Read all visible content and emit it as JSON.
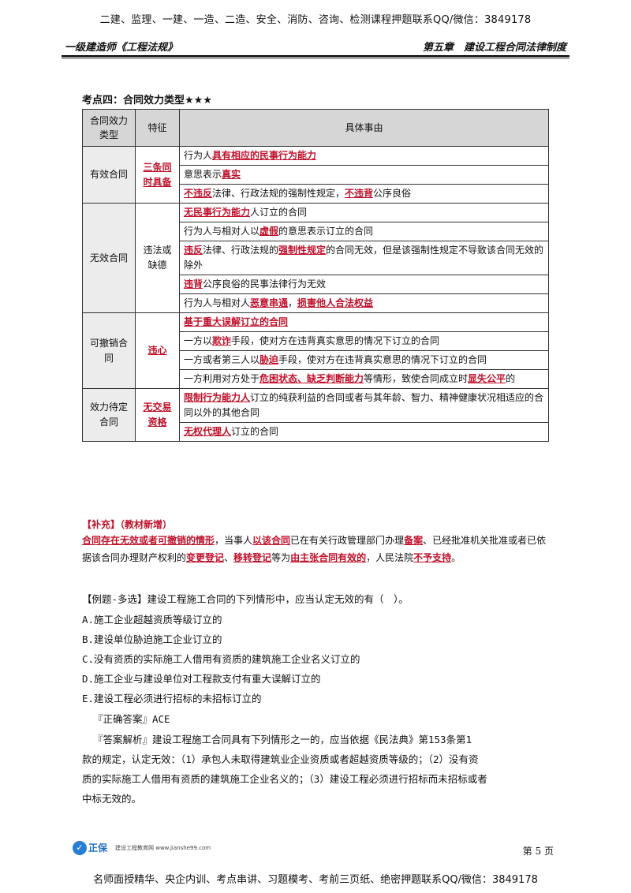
{
  "header": {
    "banner": "二建、监理、一建、一造、二造、安全、消防、咨询、检测课程押题联系QQ/微信：3849178",
    "left": "一级建造师《工程法规》",
    "right": "第五章　建设工程合同法律制度"
  },
  "section_title": "考点四：合同效力类型★★★",
  "table": {
    "headers": [
      "合同效力类型",
      "特征",
      "具体事由"
    ],
    "effective": {
      "category": "有效合同",
      "feature": "三条同时具备",
      "items": [
        {
          "p1": "行为人",
          "r1": "具有相应的民事行为能力"
        },
        {
          "p1": "意思表示",
          "r1": "真实"
        },
        {
          "r1": "不违反",
          "p1": "法律、行政法规的强制性规定，",
          "r2": "不违背",
          "p2": "公序良俗"
        }
      ]
    },
    "void": {
      "category": "无效合同",
      "feature": "违法或缺德",
      "items": [
        {
          "r1": "无民事行为能力",
          "p1": "人订立的合同"
        },
        {
          "p1": "行为人与相对人以",
          "r1": "虚假",
          "p2": "的意思表示订立的合同"
        },
        {
          "r1": "违反",
          "p1": "法律、行政法规的",
          "r2": "强制性规定",
          "p2": "的合同无效，但是该强制性规定不导致该合同无效的除外"
        },
        {
          "r1": "违背",
          "p1": "公序良俗的民事法律行为无效"
        },
        {
          "p1": "行为人与相对人",
          "r1": "恶意串通",
          "p2": "，",
          "r2": "损害他人合法权益"
        }
      ]
    },
    "voidable": {
      "category": "可撤销合同",
      "feature": "违心",
      "items": [
        {
          "r1": "基于重大误解订立的合同"
        },
        {
          "p1": "一方以",
          "r1": "欺诈",
          "p2": "手段，使对方在违背真实意思的情况下订立的合同"
        },
        {
          "p1": "一方或者第三人以",
          "r1": "胁迫",
          "p2": "手段，使对方在违背真实意思的情况下订立的合同"
        },
        {
          "p1": "一方利用对方处于",
          "r1": "危困状态、缺乏判断能力",
          "p2": "等情形，致使合同成立时",
          "r2": "显失公平",
          "p3": "的"
        }
      ]
    },
    "pending": {
      "category": "效力待定合同",
      "feature": "无交易资格",
      "items": [
        {
          "r1": "限制行为能力人",
          "p1": "订立的纯获利益的合同或者与其年龄、智力、精神健康状况相适应的合同以外的其他合同"
        },
        {
          "r1": "无权代理人",
          "p1": "订立的合同"
        }
      ]
    }
  },
  "supplement": {
    "label": "【补充】（教材新增）",
    "r1": "合同存在无效或者可撤销的情形",
    "p1": "，当事人",
    "r2": "以该合同",
    "p2": "已在有关行政管理部门办理",
    "r3": "备案",
    "p3": "、已经批准机关批准或者已依据该合同办理财产权利的",
    "r4": "变更登记",
    "p4": "、",
    "r5": "移转登记",
    "p5": "等为",
    "r6": "由主张合同有效的",
    "p6": "，人民法院",
    "r7": "不予支持",
    "p7": "。"
  },
  "question": {
    "stem": "【例题-多选】建设工程施工合同的下列情形中，应当认定无效的有（　）。",
    "options": [
      "A.施工企业超越资质等级订立的",
      "B.建设单位胁迫施工企业订立的",
      "C.没有资质的实际施工人借用有资质的建筑施工企业名义订立的",
      "D.施工企业与建设单位对工程款支付有重大误解订立的",
      "E.建设工程必须进行招标的未招标订立的"
    ],
    "answer": "『正确答案』ACE",
    "analysis_1": "『答案解析』建设工程施工合同具有下列情形之一的，应当依据《民法典》第153条第1",
    "analysis_2": "款的规定，认定无效：（1）承包人未取得建筑业企业资质或者超越资质等级的；（2）没有资",
    "analysis_3": "质的实际施工人借用有资质的建筑施工企业名义的；（3）建设工程必须进行招标而未招标或者",
    "analysis_4": "中标无效的。"
  },
  "footer": {
    "logo_text": "正保",
    "brand": "正保",
    "sub": "建设工程教育网 www.jianshe99.com",
    "page": "第 5 页",
    "banner": "名师面授精华、央企内训、考点串讲、习题模考、考前三页纸、绝密押题联系QQ/微信：3849178"
  },
  "colors": {
    "emphasis": "#c0102a",
    "header_bg": "#d6d6d6",
    "brand": "#1f6fc0"
  }
}
